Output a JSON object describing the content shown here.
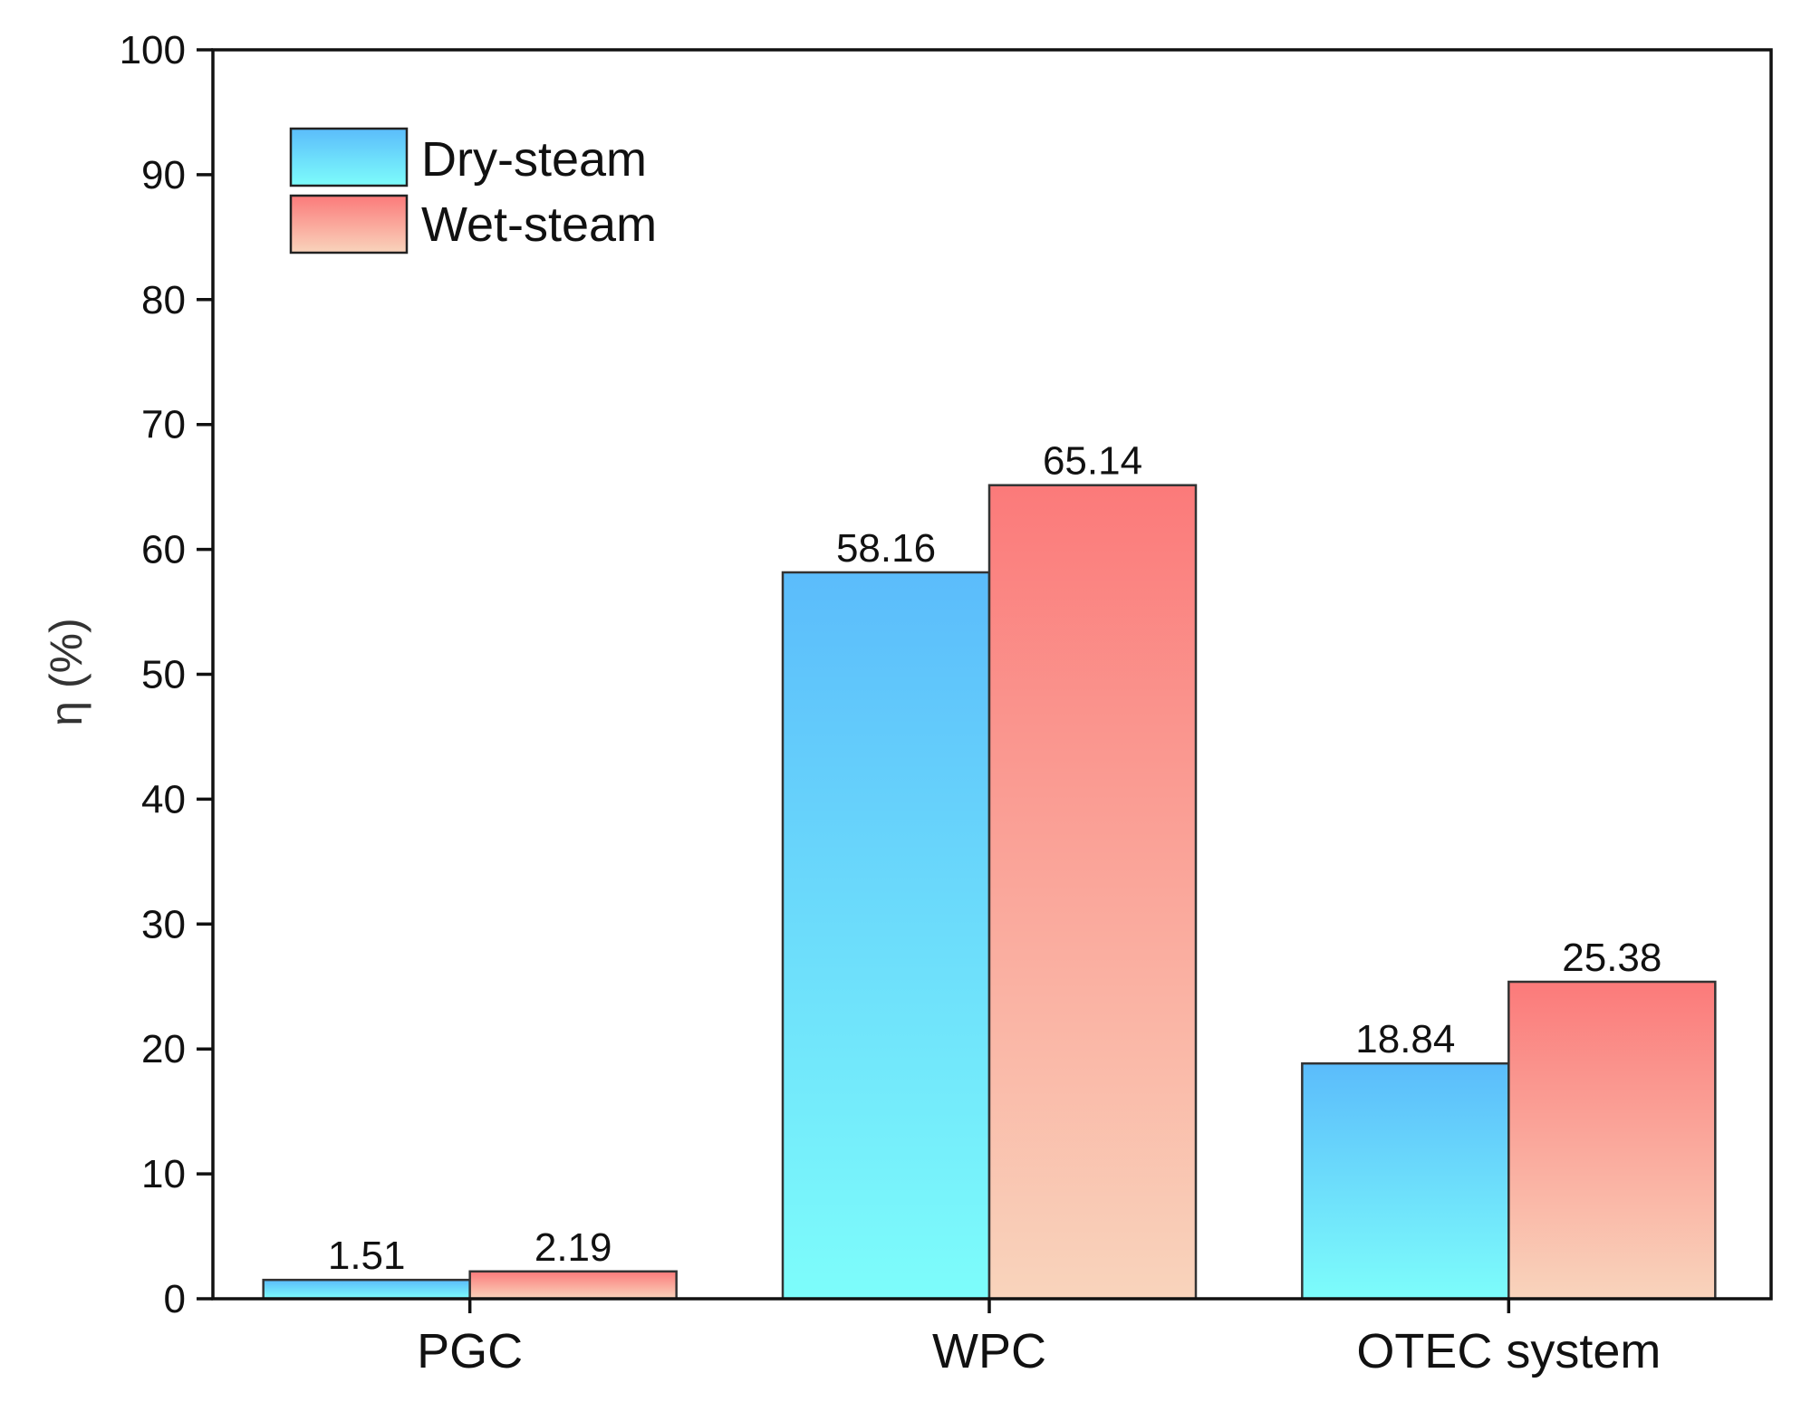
{
  "chart_data": {
    "type": "bar",
    "title": "",
    "xlabel": "",
    "ylabel": "η (%)",
    "ylim": [
      0,
      100
    ],
    "yticks": [
      0,
      10,
      20,
      30,
      40,
      50,
      60,
      70,
      80,
      90,
      100
    ],
    "categories": [
      "PGC",
      "WPC",
      "OTEC system"
    ],
    "series": [
      {
        "name": "Dry-steam",
        "values": [
          1.51,
          58.16,
          18.84
        ],
        "labels": [
          "1.51",
          "58.16",
          "18.84"
        ],
        "color_top": "#5bbcfb",
        "color_bottom": "#7dfdfb"
      },
      {
        "name": "Wet-steam",
        "values": [
          2.19,
          65.14,
          25.38
        ],
        "labels": [
          "2.19",
          "65.14",
          "25.38"
        ],
        "color_top": "#fb7a7a",
        "color_bottom": "#f9d4bc"
      }
    ],
    "legend_position": "top-left",
    "grid": false
  }
}
